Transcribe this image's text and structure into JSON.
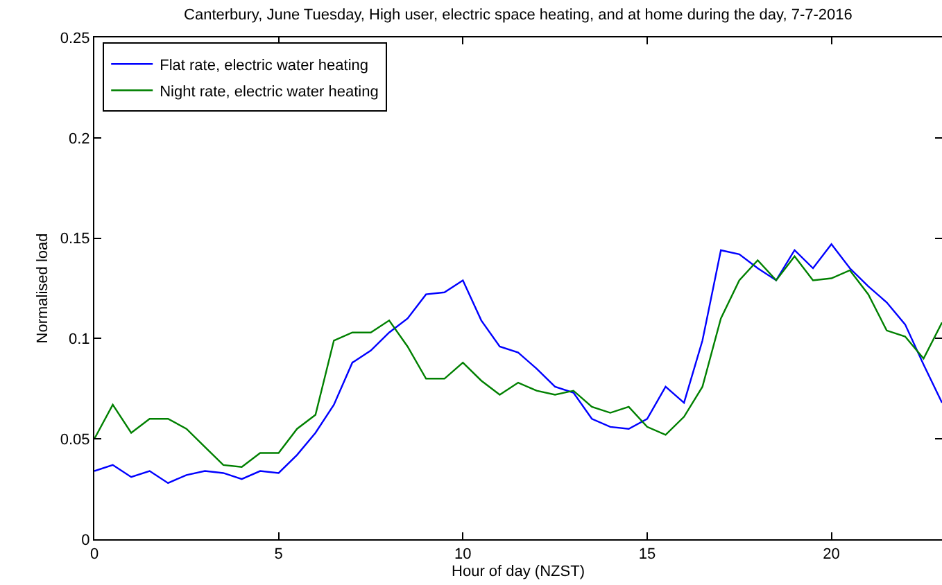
{
  "chart_data": {
    "type": "line",
    "title": "Canterbury, June Tuesday, High user, electric space heating, and at home during the day, 7-7-2016",
    "xlabel": "Hour of day (NZST)",
    "ylabel": "Normalised load",
    "x": [
      0,
      0.5,
      1,
      1.5,
      2,
      2.5,
      3,
      3.5,
      4,
      4.5,
      5,
      5.5,
      6,
      6.5,
      7,
      7.5,
      8,
      8.5,
      9,
      9.5,
      10,
      10.5,
      11,
      11.5,
      12,
      12.5,
      13,
      13.5,
      14,
      14.5,
      15,
      15.5,
      16,
      16.5,
      17,
      17.5,
      18,
      18.5,
      19,
      19.5,
      20,
      20.5,
      21,
      21.5,
      22,
      22.5,
      23
    ],
    "series": [
      {
        "name": "Flat rate, electric water heating",
        "color": "#0000ff",
        "values": [
          0.034,
          0.037,
          0.031,
          0.034,
          0.028,
          0.032,
          0.034,
          0.033,
          0.03,
          0.034,
          0.033,
          0.042,
          0.053,
          0.067,
          0.088,
          0.094,
          0.103,
          0.11,
          0.122,
          0.123,
          0.129,
          0.109,
          0.096,
          0.093,
          0.085,
          0.076,
          0.073,
          0.06,
          0.056,
          0.055,
          0.06,
          0.076,
          0.068,
          0.099,
          0.144,
          0.142,
          0.135,
          0.129,
          0.144,
          0.135,
          0.147,
          0.135,
          0.126,
          0.118,
          0.107,
          0.087,
          0.068
        ]
      },
      {
        "name": "Night rate, electric water heating",
        "color": "#008000",
        "values": [
          0.05,
          0.067,
          0.053,
          0.06,
          0.06,
          0.055,
          0.046,
          0.037,
          0.036,
          0.043,
          0.043,
          0.055,
          0.062,
          0.099,
          0.103,
          0.103,
          0.109,
          0.096,
          0.08,
          0.08,
          0.088,
          0.079,
          0.072,
          0.078,
          0.074,
          0.072,
          0.074,
          0.066,
          0.063,
          0.066,
          0.056,
          0.052,
          0.061,
          0.076,
          0.11,
          0.129,
          0.139,
          0.129,
          0.141,
          0.129,
          0.13,
          0.134,
          0.122,
          0.104,
          0.101,
          0.09,
          0.108
        ]
      }
    ],
    "xlim": [
      0,
      23
    ],
    "xticks": [
      0,
      5,
      10,
      15,
      20
    ],
    "ylim": [
      0,
      0.25
    ],
    "yticks": [
      {
        "value": 0,
        "label": "0"
      },
      0.05,
      0.1,
      0.15,
      0.2,
      0.25
    ],
    "legend": "top left"
  }
}
